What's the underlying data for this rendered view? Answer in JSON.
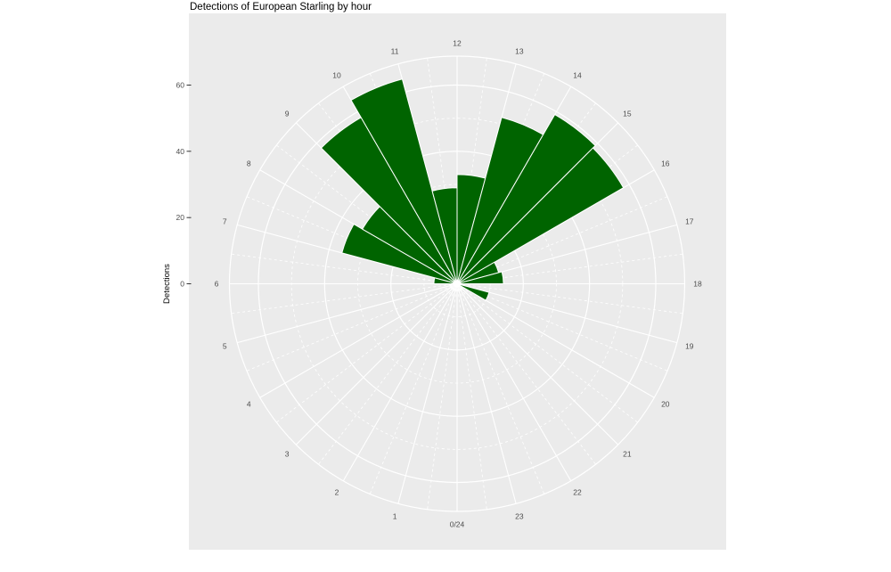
{
  "chart_data": {
    "type": "bar",
    "coordinate": "polar",
    "title": "Detections of European Starling by hour",
    "ylabel": "Detections",
    "categories": [
      0,
      1,
      2,
      3,
      4,
      5,
      6,
      7,
      8,
      9,
      10,
      11,
      12,
      13,
      14,
      15,
      16,
      17,
      18,
      19,
      20,
      21,
      22,
      23
    ],
    "values": [
      0,
      0,
      0,
      0,
      0,
      0,
      7,
      36,
      33,
      58,
      64,
      29,
      33,
      52,
      59,
      58,
      13,
      14,
      0,
      10,
      0,
      0,
      0,
      0
    ],
    "angular_axis_labels": [
      "0/24",
      "1",
      "2",
      "3",
      "4",
      "5",
      "6",
      "7",
      "8",
      "9",
      "10",
      "11",
      "12",
      "13",
      "14",
      "15",
      "16",
      "17",
      "18",
      "19",
      "20",
      "21",
      "22",
      "23"
    ],
    "radial_ticks": [
      0,
      20,
      40,
      60
    ],
    "minor_radial_gridlines": [
      10,
      30,
      50
    ],
    "rlim": [
      0,
      68.7
    ],
    "hour0_position": "bottom",
    "direction": "clockwise",
    "bar_color": "#006400",
    "bar_border_color": "#FFFFFF",
    "panel_bg": "#EBEBEB",
    "grid_color": "#FFFFFF",
    "tick_label_color": "#4D4D4D",
    "tick_mark_color": "#333333",
    "title_color": "#000000",
    "legend": "none"
  }
}
